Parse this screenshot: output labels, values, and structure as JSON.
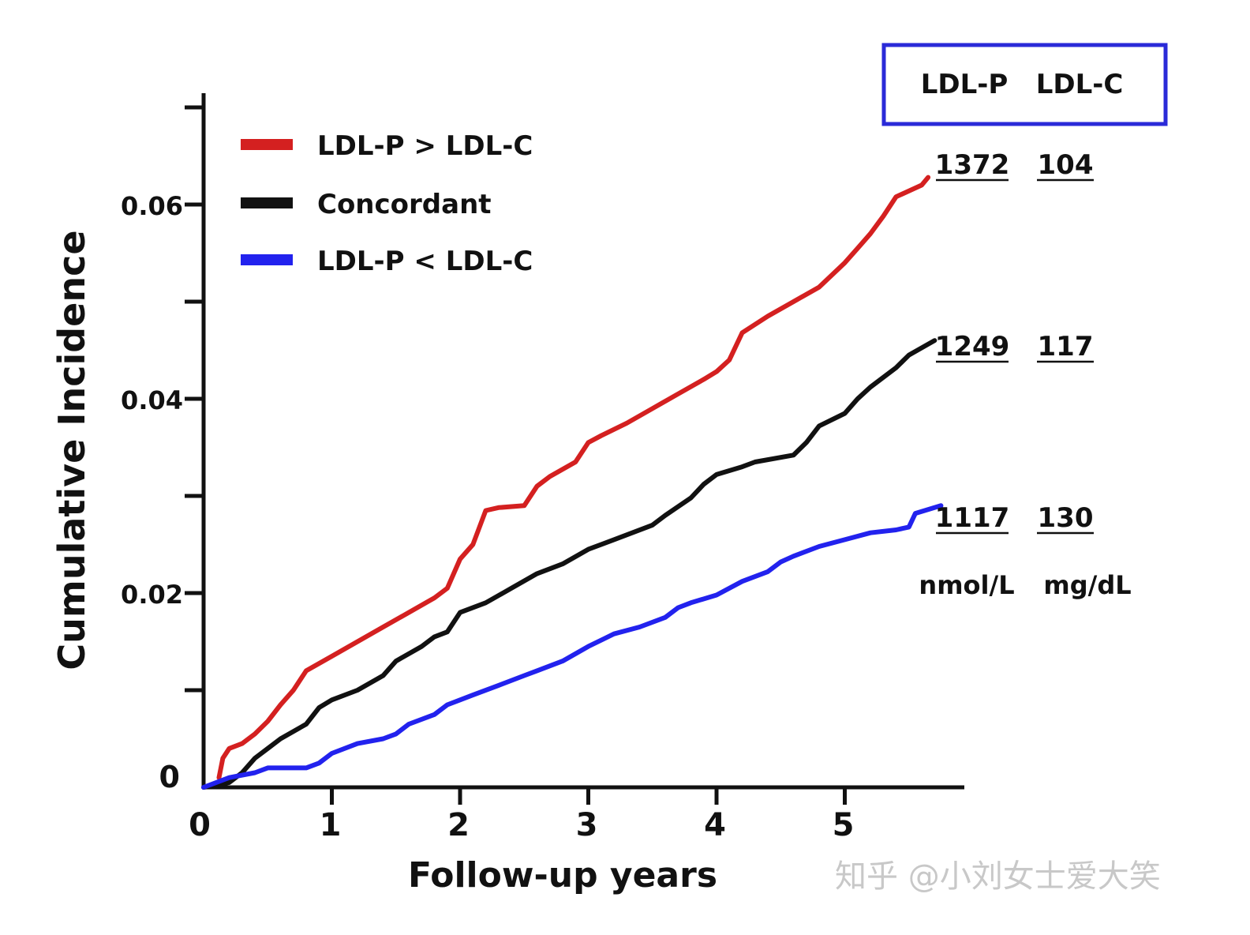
{
  "chart_data": {
    "type": "line",
    "title": "",
    "xlabel": "Follow-up years",
    "ylabel": "Cumulative Incidence",
    "xlim": [
      0,
      6
    ],
    "ylim": [
      0,
      0.07
    ],
    "x_ticks": [
      "0",
      "1",
      "2",
      "3",
      "4",
      "5"
    ],
    "y_ticks": [
      "0",
      "0.02",
      "0.04",
      "0.06"
    ],
    "y_tick_values": [
      0,
      0.02,
      0.04,
      0.06
    ],
    "y_minor_ticks": [
      0.01,
      0.03,
      0.05,
      0.07
    ],
    "series": [
      {
        "name": "LDL-P > LDL-C",
        "color": "#d42020",
        "x": [
          0.12,
          0.15,
          0.2,
          0.3,
          0.4,
          0.5,
          0.6,
          0.7,
          0.8,
          1.0,
          1.2,
          1.4,
          1.6,
          1.8,
          1.9,
          2.0,
          2.1,
          2.2,
          2.3,
          2.5,
          2.6,
          2.7,
          2.9,
          3.0,
          3.1,
          3.3,
          3.5,
          3.7,
          3.9,
          4.0,
          4.1,
          4.2,
          4.4,
          4.6,
          4.8,
          5.0,
          5.1,
          5.2,
          5.3,
          5.4,
          5.6,
          5.65
        ],
        "y": [
          0.001,
          0.003,
          0.004,
          0.0045,
          0.0055,
          0.0068,
          0.0085,
          0.01,
          0.012,
          0.0135,
          0.015,
          0.0165,
          0.018,
          0.0195,
          0.0205,
          0.0235,
          0.025,
          0.0285,
          0.0288,
          0.029,
          0.031,
          0.032,
          0.0335,
          0.0355,
          0.0362,
          0.0375,
          0.039,
          0.0405,
          0.042,
          0.0428,
          0.044,
          0.0468,
          0.0485,
          0.05,
          0.0515,
          0.054,
          0.0555,
          0.057,
          0.0588,
          0.0608,
          0.062,
          0.0628
        ]
      },
      {
        "name": "Concordant",
        "color": "#111111",
        "x": [
          0.0,
          0.2,
          0.3,
          0.4,
          0.5,
          0.6,
          0.8,
          0.9,
          1.0,
          1.2,
          1.4,
          1.5,
          1.7,
          1.8,
          1.9,
          2.0,
          2.2,
          2.4,
          2.6,
          2.8,
          3.0,
          3.2,
          3.5,
          3.6,
          3.8,
          3.9,
          4.0,
          4.2,
          4.3,
          4.6,
          4.7,
          4.8,
          5.0,
          5.1,
          5.2,
          5.4,
          5.5,
          5.7
        ],
        "y": [
          0.0,
          0.0005,
          0.0015,
          0.003,
          0.004,
          0.005,
          0.0065,
          0.0082,
          0.009,
          0.01,
          0.0115,
          0.013,
          0.0145,
          0.0155,
          0.016,
          0.018,
          0.019,
          0.0205,
          0.022,
          0.023,
          0.0245,
          0.0255,
          0.027,
          0.028,
          0.0298,
          0.0312,
          0.0322,
          0.033,
          0.0335,
          0.0342,
          0.0355,
          0.0372,
          0.0385,
          0.04,
          0.0412,
          0.0432,
          0.0445,
          0.046
        ]
      },
      {
        "name": "LDL-P < LDL-C",
        "color": "#2222ee",
        "x": [
          0.0,
          0.2,
          0.4,
          0.5,
          0.6,
          0.8,
          0.9,
          1.0,
          1.2,
          1.4,
          1.5,
          1.6,
          1.8,
          1.9,
          2.1,
          2.3,
          2.5,
          2.6,
          2.8,
          3.0,
          3.2,
          3.4,
          3.6,
          3.7,
          3.8,
          4.0,
          4.2,
          4.4,
          4.5,
          4.6,
          4.8,
          5.0,
          5.2,
          5.4,
          5.5,
          5.55,
          5.75
        ],
        "y": [
          0.0,
          0.001,
          0.0015,
          0.002,
          0.002,
          0.002,
          0.0025,
          0.0035,
          0.0045,
          0.005,
          0.0055,
          0.0065,
          0.0075,
          0.0085,
          0.0095,
          0.0105,
          0.0115,
          0.012,
          0.013,
          0.0145,
          0.0158,
          0.0165,
          0.0175,
          0.0185,
          0.019,
          0.0198,
          0.0212,
          0.0222,
          0.0232,
          0.0238,
          0.0248,
          0.0255,
          0.0262,
          0.0265,
          0.0268,
          0.0282,
          0.029
        ]
      }
    ],
    "legend": {
      "placement": "top-left",
      "entries": [
        "LDL-P > LDL-C",
        "Concordant",
        "LDL-P < LDL-C"
      ]
    },
    "table": {
      "headers": [
        "LDL-P",
        "LDL-C"
      ],
      "rows": [
        {
          "series": "LDL-P > LDL-C",
          "ldlp": "1372",
          "ldlc": "104"
        },
        {
          "series": "Concordant",
          "ldlp": "1249",
          "ldlc": "117"
        },
        {
          "series": "LDL-P < LDL-C",
          "ldlp": "1117",
          "ldlc": "130"
        }
      ],
      "units": [
        "nmol/L",
        "mg/dL"
      ],
      "border_color": "#2a2ad8"
    }
  },
  "watermark": "知乎 @小刘女士爱大笑"
}
